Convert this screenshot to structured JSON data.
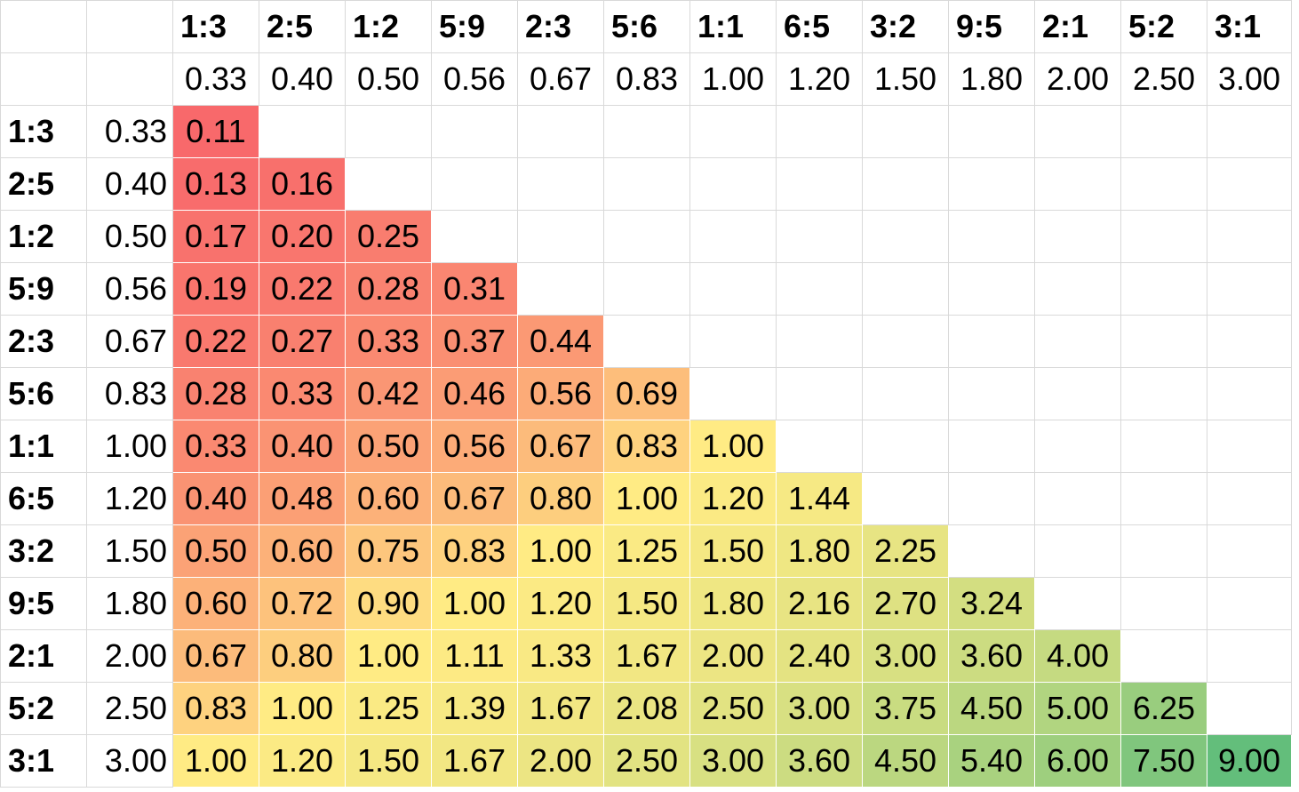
{
  "sheet": {
    "labels": [
      "1:3",
      "2:5",
      "1:2",
      "5:9",
      "2:3",
      "5:6",
      "1:1",
      "6:5",
      "3:2",
      "9:5",
      "2:1",
      "5:2",
      "3:1"
    ],
    "values": [
      "0.33",
      "0.40",
      "0.50",
      "0.56",
      "0.67",
      "0.83",
      "1.00",
      "1.20",
      "1.50",
      "1.80",
      "2.00",
      "2.50",
      "3.00"
    ],
    "rows": [
      [
        "0.11"
      ],
      [
        "0.13",
        "0.16"
      ],
      [
        "0.17",
        "0.20",
        "0.25"
      ],
      [
        "0.19",
        "0.22",
        "0.28",
        "0.31"
      ],
      [
        "0.22",
        "0.27",
        "0.33",
        "0.37",
        "0.44"
      ],
      [
        "0.28",
        "0.33",
        "0.42",
        "0.46",
        "0.56",
        "0.69"
      ],
      [
        "0.33",
        "0.40",
        "0.50",
        "0.56",
        "0.67",
        "0.83",
        "1.00"
      ],
      [
        "0.40",
        "0.48",
        "0.60",
        "0.67",
        "0.80",
        "1.00",
        "1.20",
        "1.44"
      ],
      [
        "0.50",
        "0.60",
        "0.75",
        "0.83",
        "1.00",
        "1.25",
        "1.50",
        "1.80",
        "2.25"
      ],
      [
        "0.60",
        "0.72",
        "0.90",
        "1.00",
        "1.20",
        "1.50",
        "1.80",
        "2.16",
        "2.70",
        "3.24"
      ],
      [
        "0.67",
        "0.80",
        "1.00",
        "1.11",
        "1.33",
        "1.67",
        "2.00",
        "2.40",
        "3.00",
        "3.60",
        "4.00"
      ],
      [
        "0.83",
        "1.00",
        "1.25",
        "1.39",
        "1.67",
        "2.08",
        "2.50",
        "3.00",
        "3.75",
        "4.50",
        "5.00",
        "6.25"
      ],
      [
        "1.00",
        "1.20",
        "1.50",
        "1.67",
        "2.00",
        "2.50",
        "3.00",
        "3.60",
        "4.50",
        "5.40",
        "6.00",
        "7.50",
        "9.00"
      ]
    ],
    "scale_colors": {
      "low": "#f8696b",
      "mid": "#ffeb84",
      "high": "#63be7b",
      "grid": "#d9d9d9"
    }
  }
}
